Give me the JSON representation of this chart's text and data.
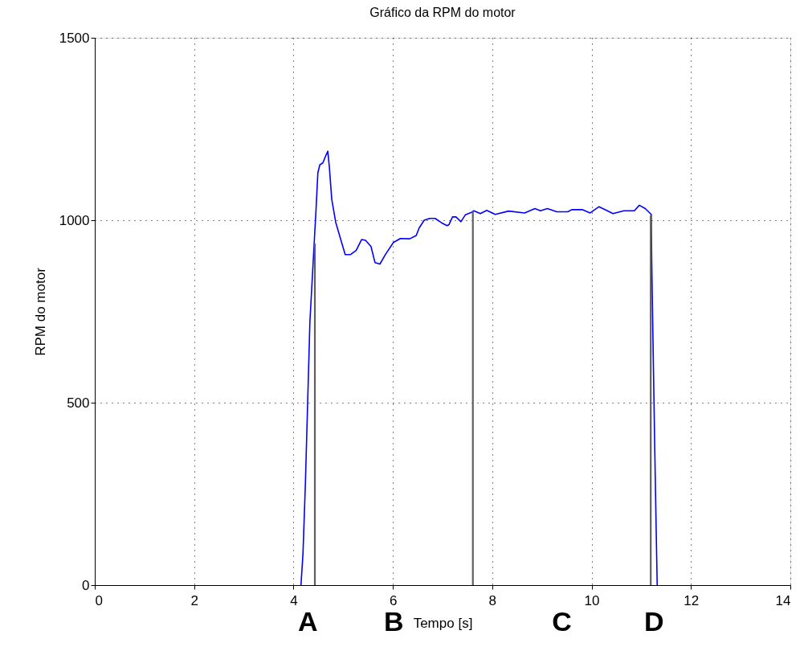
{
  "chart_data": {
    "type": "line",
    "title": "Gráfico da RPM do motor",
    "xlabel": "Tempo [s]",
    "ylabel": "RPM do motor",
    "xlim": [
      0,
      14
    ],
    "xticks": [
      0,
      2,
      4,
      6,
      8,
      10,
      12,
      14
    ],
    "ylim": [
      0,
      1500
    ],
    "yticks": [
      0,
      500,
      1000,
      1500
    ],
    "grid": true,
    "marker": "none",
    "line_style": "solid",
    "series": [
      {
        "color": "#0000ff",
        "x": [
          4.15,
          4.19,
          4.24,
          4.33,
          4.43,
          4.45,
          4.49,
          4.53,
          4.59,
          4.64,
          4.69,
          4.72,
          4.77,
          4.85,
          5.04,
          5.15,
          5.26,
          5.37,
          5.45,
          5.56,
          5.64,
          5.74,
          5.85,
          6.01,
          6.15,
          6.34,
          6.47,
          6.53,
          6.63,
          6.74,
          6.85,
          6.98,
          7.09,
          7.13,
          7.2,
          7.27,
          7.37,
          7.46,
          7.59,
          7.63,
          7.76,
          7.89,
          8.06,
          8.33,
          8.65,
          8.86,
          8.97,
          9.11,
          9.3,
          9.52,
          9.6,
          9.81,
          9.97,
          10.15,
          10.3,
          10.43,
          10.65,
          10.86,
          10.96,
          11.08,
          11.2,
          11.21,
          11.24,
          11.27,
          11.3,
          11.32
        ],
        "values": [
          0,
          84,
          282,
          722,
          972,
          1020,
          1130,
          1152,
          1157,
          1174,
          1189,
          1148,
          1057,
          994,
          906,
          906,
          917,
          947,
          945,
          928,
          884,
          880,
          906,
          939,
          950,
          949,
          958,
          979,
          1000,
          1005,
          1005,
          993,
          985,
          988,
          1009,
          1009,
          996,
          1015,
          1022,
          1026,
          1018,
          1027,
          1016,
          1025,
          1020,
          1032,
          1026,
          1032,
          1023,
          1023,
          1029,
          1029,
          1020,
          1037,
          1027,
          1018,
          1026,
          1026,
          1041,
          1032,
          1016,
          888,
          634,
          381,
          150,
          0
        ]
      },
      {
        "type": "line",
        "color": "#606060",
        "x": [
          4.43,
          4.43
        ],
        "values": [
          0,
          936
        ]
      },
      {
        "type": "line",
        "color": "#606060",
        "x": [
          7.61,
          7.61
        ],
        "values": [
          0,
          1024
        ]
      },
      {
        "type": "line",
        "color": "#606060",
        "x": [
          11.19,
          11.19
        ],
        "values": [
          0,
          1013
        ]
      }
    ],
    "annotations": [
      "A",
      "B",
      "C",
      "D"
    ]
  }
}
